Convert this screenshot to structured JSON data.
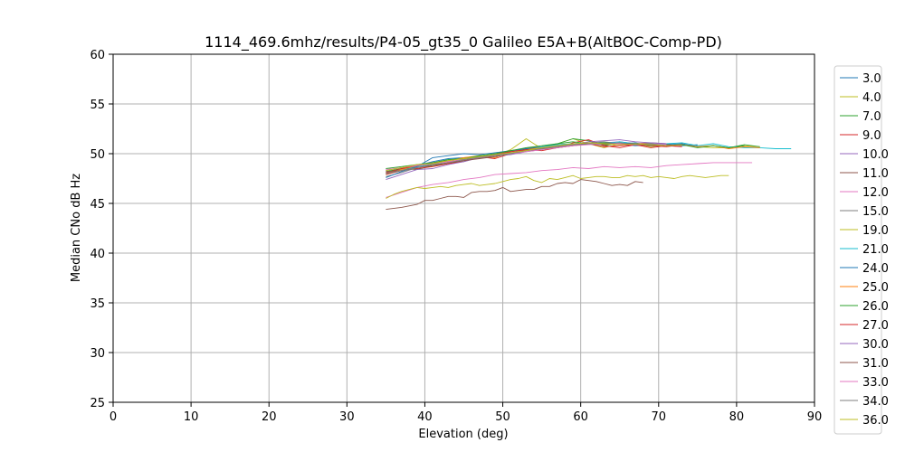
{
  "chart_data": {
    "type": "line",
    "title": "1114_469.6mhz/results/P4-05_gt35_0 Galileo E5A+B(AltBOC-Comp-PD)",
    "xlabel": "Elevation (deg)",
    "ylabel": "Median CNo dB Hz",
    "xlim": [
      0,
      90
    ],
    "ylim": [
      25,
      60
    ],
    "xticks": [
      "0",
      "10",
      "20",
      "30",
      "40",
      "50",
      "60",
      "70",
      "80",
      "90"
    ],
    "yticks": [
      "25",
      "30",
      "35",
      "40",
      "45",
      "50",
      "55",
      "60"
    ],
    "grid": true,
    "legend_position": "right",
    "series": [
      {
        "name": "3.0",
        "color": "#1f77b4",
        "x": [
          35,
          37,
          39,
          41,
          43,
          45,
          47,
          49,
          51,
          53,
          55,
          57,
          59,
          61,
          63,
          65,
          67,
          69,
          71,
          73,
          75
        ],
        "y": [
          48.0,
          48.5,
          48.8,
          49.2,
          49.5,
          49.6,
          49.7,
          49.9,
          50.2,
          50.5,
          50.6,
          50.8,
          50.9,
          51.0,
          50.9,
          51.0,
          50.8,
          50.9,
          51.0,
          50.8,
          50.9
        ]
      },
      {
        "name": "4.0",
        "color": "#bcbd22",
        "x": [
          35,
          37,
          39,
          41,
          43,
          45,
          47,
          49,
          51,
          53,
          55,
          57,
          59,
          61,
          63,
          65,
          67,
          69,
          71,
          73,
          75,
          77,
          79,
          81,
          83
        ],
        "y": [
          47.9,
          48.3,
          48.7,
          49.0,
          49.3,
          49.5,
          49.6,
          49.8,
          50.4,
          51.5,
          50.5,
          51.0,
          51.5,
          51.0,
          50.6,
          51.0,
          51.0,
          50.7,
          50.9,
          50.9,
          50.7,
          50.6,
          50.6,
          50.8,
          50.7
        ]
      },
      {
        "name": "7.0",
        "color": "#2ca02c",
        "x": [
          35,
          37,
          39,
          41,
          43,
          45,
          47,
          49,
          51,
          53,
          55,
          57,
          59,
          61,
          63,
          65,
          67,
          69,
          71,
          73,
          75,
          77,
          79,
          81
        ],
        "y": [
          48.2,
          48.5,
          48.4,
          48.8,
          49.0,
          49.3,
          49.6,
          49.8,
          50.3,
          50.5,
          50.7,
          51.0,
          51.5,
          51.3,
          50.8,
          51.1,
          50.9,
          51.0,
          50.8,
          50.9,
          50.7,
          50.8,
          50.6,
          50.8
        ]
      },
      {
        "name": "9.0",
        "color": "#d62728",
        "x": [
          35,
          37,
          39,
          41,
          43,
          45,
          47,
          49,
          51,
          53,
          55,
          57,
          59,
          61,
          63,
          65,
          67,
          69,
          71,
          73
        ],
        "y": [
          47.9,
          48.3,
          48.5,
          48.7,
          49.0,
          49.2,
          49.7,
          49.5,
          50.0,
          50.4,
          50.5,
          50.6,
          51.1,
          51.4,
          50.8,
          50.6,
          50.9,
          50.8,
          50.7,
          50.9
        ]
      },
      {
        "name": "10.0",
        "color": "#9467bd",
        "x": [
          35,
          37,
          39,
          41,
          43,
          45,
          47,
          49,
          51,
          53,
          55,
          57,
          59,
          61,
          63,
          65,
          67,
          69,
          71
        ],
        "y": [
          48.3,
          48.6,
          48.8,
          49.0,
          49.2,
          49.4,
          49.6,
          49.8,
          50.1,
          50.3,
          50.5,
          50.7,
          50.9,
          51.0,
          51.1,
          51.2,
          51.0,
          51.1,
          51.0
        ]
      },
      {
        "name": "11.0",
        "color": "#8c564b",
        "x": [
          35,
          37,
          39,
          40,
          41,
          42,
          43,
          44,
          45,
          46,
          47,
          48,
          49,
          50,
          51,
          52,
          53,
          54,
          55,
          56,
          57,
          58,
          59,
          60,
          61,
          62,
          63,
          64,
          65,
          66,
          67,
          68
        ],
        "y": [
          44.4,
          44.6,
          44.9,
          45.3,
          45.3,
          45.5,
          45.7,
          45.7,
          45.6,
          46.1,
          46.2,
          46.2,
          46.3,
          46.6,
          46.2,
          46.3,
          46.4,
          46.4,
          46.7,
          46.7,
          47.0,
          47.1,
          47.0,
          47.4,
          47.3,
          47.2,
          47.0,
          46.8,
          46.9,
          46.8,
          47.2,
          47.1
        ]
      },
      {
        "name": "12.0",
        "color": "#e377c2",
        "x": [
          35,
          37,
          39,
          41,
          43,
          45,
          47,
          49,
          51,
          53,
          55,
          57,
          59,
          61,
          63,
          65,
          67,
          69,
          71,
          73,
          75,
          77,
          79,
          81,
          82
        ],
        "y": [
          45.6,
          46.1,
          46.6,
          46.9,
          47.1,
          47.4,
          47.6,
          47.9,
          48.0,
          48.1,
          48.3,
          48.4,
          48.6,
          48.5,
          48.7,
          48.6,
          48.7,
          48.6,
          48.8,
          48.9,
          49.0,
          49.1,
          49.1,
          49.1,
          49.1
        ]
      },
      {
        "name": "15.0",
        "color": "#7f7f7f",
        "x": [
          35,
          37,
          39,
          41,
          43,
          45,
          47,
          49,
          51,
          53,
          55,
          57,
          59,
          61,
          63,
          65,
          67,
          69,
          71
        ],
        "y": [
          47.7,
          48.1,
          48.6,
          48.9,
          49.3,
          49.6,
          49.5,
          49.9,
          50.2,
          50.6,
          50.7,
          50.9,
          51.0,
          51.1,
          51.2,
          51.0,
          50.9,
          51.1,
          51.0
        ]
      },
      {
        "name": "19.0",
        "color": "#bcbd22",
        "x": [
          35,
          36,
          37,
          38,
          39,
          40,
          41,
          42,
          43,
          44,
          45,
          46,
          47,
          48,
          49,
          50,
          51,
          52,
          53,
          54,
          55,
          56,
          57,
          58,
          59,
          60,
          61,
          62,
          63,
          64,
          65,
          66,
          67,
          68,
          69,
          70,
          71,
          72,
          73,
          74,
          75,
          76,
          77,
          78,
          79
        ],
        "y": [
          45.5,
          45.9,
          46.2,
          46.4,
          46.6,
          46.5,
          46.6,
          46.7,
          46.6,
          46.8,
          46.9,
          47.0,
          46.8,
          46.9,
          47.0,
          47.2,
          47.4,
          47.5,
          47.7,
          47.3,
          47.1,
          47.5,
          47.4,
          47.6,
          47.8,
          47.5,
          47.6,
          47.7,
          47.7,
          47.6,
          47.6,
          47.8,
          47.7,
          47.8,
          47.6,
          47.7,
          47.6,
          47.5,
          47.7,
          47.8,
          47.7,
          47.6,
          47.7,
          47.8,
          47.8
        ]
      },
      {
        "name": "21.0",
        "color": "#17becf",
        "x": [
          35,
          37,
          39,
          41,
          43,
          45,
          47,
          49,
          51,
          53,
          55,
          57,
          59,
          61,
          63,
          65,
          67,
          69,
          71,
          73,
          75,
          77,
          79,
          81,
          83,
          85,
          87
        ],
        "y": [
          48.1,
          48.4,
          48.7,
          49.0,
          49.4,
          49.5,
          49.7,
          49.9,
          50.2,
          50.4,
          50.7,
          50.9,
          51.0,
          51.1,
          51.0,
          51.2,
          51.0,
          50.9,
          51.0,
          51.1,
          50.8,
          51.0,
          50.7,
          50.6,
          50.6,
          50.5,
          50.5
        ]
      },
      {
        "name": "24.0",
        "color": "#1f77b4",
        "x": [
          35,
          37,
          39,
          41,
          43,
          45,
          47,
          49,
          51,
          53,
          55,
          57,
          59,
          61,
          63,
          65,
          67,
          69,
          71,
          73,
          75
        ],
        "y": [
          47.6,
          48.2,
          48.7,
          49.6,
          49.8,
          50.0,
          49.9,
          50.1,
          50.3,
          50.5,
          50.6,
          50.8,
          50.9,
          51.0,
          51.1,
          51.0,
          51.1,
          50.8,
          50.9,
          51.0,
          50.7
        ]
      },
      {
        "name": "25.0",
        "color": "#ff7f0e",
        "x": [
          35,
          37,
          39,
          41,
          43,
          45,
          47,
          49,
          51,
          53,
          55,
          57,
          59,
          61,
          63,
          65,
          67,
          69,
          71,
          73,
          75,
          77,
          79,
          81,
          83
        ],
        "y": [
          48.0,
          48.4,
          48.8,
          49.1,
          49.3,
          49.6,
          49.8,
          49.6,
          50.2,
          50.4,
          50.6,
          50.8,
          50.9,
          51.1,
          51.0,
          50.9,
          51.0,
          51.0,
          50.8,
          50.9,
          50.7,
          50.8,
          50.5,
          50.7,
          50.6
        ]
      },
      {
        "name": "26.0",
        "color": "#2ca02c",
        "x": [
          35,
          37,
          39,
          41,
          43,
          45,
          47,
          49,
          51,
          53,
          55,
          57,
          59,
          61,
          63,
          65,
          67,
          69,
          71,
          73,
          75,
          77,
          79,
          81,
          83
        ],
        "y": [
          48.5,
          48.7,
          48.9,
          49.1,
          49.4,
          49.5,
          49.8,
          50.0,
          50.3,
          50.6,
          50.8,
          51.0,
          51.2,
          51.0,
          51.1,
          51.0,
          50.9,
          51.0,
          50.8,
          50.9,
          50.6,
          50.8,
          50.6,
          50.9,
          50.7
        ]
      },
      {
        "name": "27.0",
        "color": "#d62728",
        "x": [
          35,
          37,
          39,
          41,
          43,
          45,
          47,
          49,
          51,
          53,
          55,
          57,
          59,
          61,
          63,
          65,
          67,
          69,
          71,
          73
        ],
        "y": [
          48.1,
          48.5,
          48.8,
          49.0,
          49.2,
          49.4,
          49.6,
          49.9,
          50.2,
          50.4,
          50.3,
          50.6,
          50.8,
          51.0,
          50.7,
          50.8,
          50.9,
          50.6,
          50.8,
          50.7
        ]
      },
      {
        "name": "30.0",
        "color": "#9467bd",
        "x": [
          35,
          37,
          39,
          41,
          43,
          45,
          47,
          49,
          51,
          53,
          55,
          57,
          59,
          61,
          63,
          65,
          67,
          69,
          71
        ],
        "y": [
          47.4,
          47.9,
          48.4,
          48.5,
          48.9,
          49.2,
          49.6,
          49.8,
          49.9,
          50.2,
          50.4,
          50.7,
          50.9,
          51.2,
          51.3,
          51.4,
          51.2,
          51.1,
          51.0
        ]
      },
      {
        "name": "31.0",
        "color": "#8c564b",
        "x": [
          35,
          37,
          39,
          41,
          43,
          45,
          47,
          49,
          51,
          53,
          55,
          57,
          59,
          61,
          63,
          65,
          67,
          69,
          71,
          73
        ],
        "y": [
          48.2,
          48.3,
          48.6,
          48.8,
          49.1,
          49.3,
          49.5,
          49.7,
          50.0,
          50.3,
          50.5,
          50.6,
          50.8,
          51.0,
          50.9,
          51.0,
          51.0,
          50.8,
          50.9,
          50.8
        ]
      },
      {
        "name": "33.0",
        "color": "#e377c2",
        "x": [
          35,
          37,
          39,
          41,
          43,
          45,
          47,
          49,
          51,
          53,
          55,
          57,
          59,
          61,
          63,
          65,
          67,
          69,
          71
        ],
        "y": [
          48.4,
          48.6,
          48.8,
          49.0,
          49.2,
          49.4,
          49.6,
          49.8,
          50.0,
          50.2,
          50.4,
          50.6,
          50.8,
          50.9,
          51.0,
          51.0,
          50.9,
          51.0,
          50.9
        ]
      },
      {
        "name": "34.0",
        "color": "#7f7f7f",
        "x": [
          35,
          37,
          39,
          41,
          43,
          45,
          47,
          49,
          51,
          53,
          55,
          57,
          59,
          61,
          63,
          65,
          67,
          69,
          71,
          73
        ],
        "y": [
          48.0,
          48.3,
          48.6,
          48.9,
          49.1,
          49.4,
          49.6,
          49.8,
          50.0,
          50.3,
          50.5,
          50.7,
          50.9,
          51.0,
          51.0,
          51.1,
          50.9,
          51.0,
          50.8,
          50.9
        ]
      },
      {
        "name": "36.0",
        "color": "#bcbd22",
        "x": [
          35,
          37,
          39,
          41,
          43,
          45,
          47,
          49,
          51,
          53,
          55,
          57,
          59,
          61,
          63,
          65,
          67,
          69,
          71,
          73
        ],
        "y": [
          48.3,
          48.6,
          48.9,
          49.0,
          49.3,
          49.5,
          49.7,
          49.9,
          50.1,
          50.3,
          50.6,
          50.8,
          51.0,
          51.1,
          51.0,
          50.9,
          51.0,
          50.9,
          50.8,
          50.9
        ]
      }
    ]
  }
}
